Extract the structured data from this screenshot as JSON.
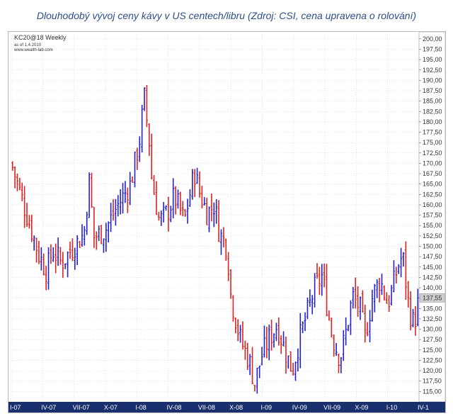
{
  "caption": "Dlouhodobý vývoj ceny kávy v US centech/libru (Zdroj: CSI, cena upravena o rolování)",
  "header": {
    "symbol": "KC20@18 Weekly",
    "asof": "as of 1.4.2010",
    "site": "www.wealth-lab.com"
  },
  "colors": {
    "up": "#2222cc",
    "down": "#dd2222",
    "axis_bar": "#1a2f6e",
    "grid": "#c8c8c8",
    "last_box": "#cfcfcf"
  },
  "chart_data": {
    "type": "ohlc",
    "frequency": "weekly",
    "ylim": [
      112.5,
      201
    ],
    "y_ticks": [
      "200,00",
      "197,50",
      "195,00",
      "192,50",
      "190,00",
      "187,50",
      "185,00",
      "182,50",
      "180,00",
      "177,50",
      "175,00",
      "172,50",
      "170,00",
      "167,50",
      "165,00",
      "162,50",
      "160,00",
      "157,50",
      "155,00",
      "152,50",
      "150,00",
      "147,50",
      "145,00",
      "142,50",
      "140,00",
      "137,50",
      "135,00",
      "132,50",
      "130,00",
      "127,50",
      "125,00",
      "122,50",
      "120,00",
      "117,50",
      "115,00"
    ],
    "x_ticks": [
      "I-07",
      "IV-07",
      "VII-07",
      "X-07",
      "I-08",
      "IV-08",
      "VII-08",
      "X-08",
      "I-09",
      "IV-09",
      "VII-09",
      "X-09",
      "I-10",
      "IV-1"
    ],
    "x_range": [
      2007.0,
      2010.25
    ],
    "last_value": "137,55",
    "anchors": [
      [
        2007.0,
        170
      ],
      [
        2007.05,
        165
      ],
      [
        2007.12,
        158
      ],
      [
        2007.22,
        148
      ],
      [
        2007.28,
        144
      ],
      [
        2007.33,
        149
      ],
      [
        2007.4,
        146
      ],
      [
        2007.5,
        150
      ],
      [
        2007.58,
        153
      ],
      [
        2007.62,
        166
      ],
      [
        2007.66,
        152
      ],
      [
        2007.75,
        154
      ],
      [
        2007.85,
        160
      ],
      [
        2007.95,
        165
      ],
      [
        2008.02,
        175
      ],
      [
        2008.06,
        186
      ],
      [
        2008.1,
        175
      ],
      [
        2008.12,
        166
      ],
      [
        2008.18,
        156
      ],
      [
        2008.24,
        158
      ],
      [
        2008.3,
        162
      ],
      [
        2008.38,
        156
      ],
      [
        2008.46,
        168
      ],
      [
        2008.5,
        163
      ],
      [
        2008.56,
        158
      ],
      [
        2008.62,
        160
      ],
      [
        2008.66,
        153
      ],
      [
        2008.72,
        150
      ],
      [
        2008.75,
        138
      ],
      [
        2008.82,
        128
      ],
      [
        2008.9,
        122
      ],
      [
        2008.94,
        117
      ],
      [
        2009.0,
        124
      ],
      [
        2009.06,
        128
      ],
      [
        2009.12,
        131
      ],
      [
        2009.18,
        125
      ],
      [
        2009.24,
        120
      ],
      [
        2009.3,
        128
      ],
      [
        2009.36,
        134
      ],
      [
        2009.42,
        140
      ],
      [
        2009.48,
        143
      ],
      [
        2009.52,
        135
      ],
      [
        2009.56,
        128
      ],
      [
        2009.62,
        123
      ],
      [
        2009.66,
        128
      ],
      [
        2009.72,
        138
      ],
      [
        2009.78,
        135
      ],
      [
        2009.82,
        128
      ],
      [
        2009.88,
        138
      ],
      [
        2009.94,
        142
      ],
      [
        2010.0,
        136
      ],
      [
        2010.04,
        140
      ],
      [
        2010.08,
        145
      ],
      [
        2010.12,
        148
      ],
      [
        2010.17,
        135
      ],
      [
        2010.21,
        131
      ],
      [
        2010.25,
        137.55
      ]
    ]
  }
}
